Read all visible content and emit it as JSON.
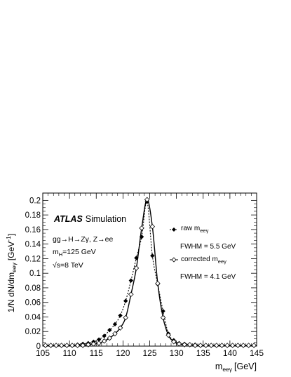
{
  "chart_data": {
    "type": "line",
    "xlabel": "m",
    "xlabel_sub": "eeγ",
    "xlabel_unit": "[GeV]",
    "ylabel_main": "1/N dN/dm",
    "ylabel_sub": "eeγ",
    "ylabel_unit": "[GeV",
    "ylabel_sup": "-1",
    "ylabel_close": "]",
    "xlim": [
      105,
      145
    ],
    "ylim": [
      0,
      0.21
    ],
    "x_ticks": [
      105,
      110,
      115,
      120,
      125,
      130,
      135,
      140,
      145
    ],
    "y_ticks": [
      0,
      0.02,
      0.04,
      0.06,
      0.08,
      0.1,
      0.12,
      0.14,
      0.16,
      0.18,
      0.2
    ],
    "x_tick_labels": [
      "105",
      "110",
      "115",
      "120",
      "125",
      "130",
      "135",
      "140",
      "145"
    ],
    "y_tick_labels": [
      "0",
      "0.02",
      "0.04",
      "0.06",
      "0.08",
      "0.1",
      "0.12",
      "0.14",
      "0.16",
      "0.18",
      "0.2"
    ],
    "grid": false,
    "annotations": {
      "atlas": "ATLAS",
      "simulation": "Simulation",
      "process": "gg→H→Zγ, Z→ee",
      "mass_prefix": "m",
      "mass_sub": "H",
      "mass_value": "=125 GeV",
      "energy": "√s=8 TeV"
    },
    "legend": {
      "placement": "right",
      "entries": [
        {
          "label_main": "raw m",
          "label_sub": "eeγ",
          "fwhm": "FWHM = 5.5 GeV",
          "marker": "filled-diamond",
          "line": "dashed"
        },
        {
          "label_main": "corrected m",
          "label_sub": "eeγ",
          "fwhm": "FWHM = 4.1 GeV",
          "marker": "open-diamond",
          "line": "solid"
        }
      ]
    },
    "series": [
      {
        "marker": "filled-diamond",
        "line": "dashed",
        "x": [
          105.5,
          106.5,
          107.5,
          108.5,
          109.5,
          110.5,
          111.5,
          112.5,
          113.5,
          114.5,
          115.5,
          116.5,
          117.5,
          118.5,
          119.5,
          120.5,
          121.5,
          122.5,
          123.5,
          124.5,
          125.5,
          126.5,
          127.5,
          128.5,
          129.5,
          130.5,
          131.5,
          132.5,
          133.5,
          134.5,
          135.5,
          136.5,
          137.5,
          138.5,
          139.5,
          140.5,
          141.5,
          142.5,
          143.5,
          144.5
        ],
        "values": [
          0.001,
          0.001,
          0.001,
          0.001,
          0.001,
          0.001,
          0.002,
          0.003,
          0.004,
          0.006,
          0.009,
          0.014,
          0.022,
          0.03,
          0.042,
          0.062,
          0.09,
          0.121,
          0.15,
          0.198,
          0.124,
          0.085,
          0.048,
          0.017,
          0.008,
          0.004,
          0.003,
          0.002,
          0.002,
          0.001,
          0.001,
          0.001,
          0.001,
          0.001,
          0.001,
          0.001,
          0.001,
          0.001,
          0.001,
          0.001
        ]
      },
      {
        "marker": "open-diamond",
        "line": "solid",
        "x": [
          105.5,
          106.5,
          107.5,
          108.5,
          109.5,
          110.5,
          111.5,
          112.5,
          113.5,
          114.5,
          115.5,
          116.5,
          117.5,
          118.5,
          119.5,
          120.5,
          121.5,
          122.5,
          123.5,
          124.5,
          125.5,
          126.5,
          127.5,
          128.5,
          129.5,
          130.5,
          131.5,
          132.5,
          133.5,
          134.5,
          135.5,
          136.5,
          137.5,
          138.5,
          139.5,
          140.5,
          141.5,
          142.5,
          143.5,
          144.5
        ],
        "values": [
          0.001,
          0.001,
          0.001,
          0.001,
          0.001,
          0.001,
          0.001,
          0.001,
          0.002,
          0.003,
          0.004,
          0.007,
          0.011,
          0.017,
          0.025,
          0.039,
          0.071,
          0.107,
          0.162,
          0.201,
          0.164,
          0.086,
          0.039,
          0.015,
          0.006,
          0.003,
          0.002,
          0.002,
          0.001,
          0.001,
          0.001,
          0.001,
          0.001,
          0.001,
          0.001,
          0.001,
          0.001,
          0.001,
          0.001,
          0.001
        ]
      }
    ]
  }
}
